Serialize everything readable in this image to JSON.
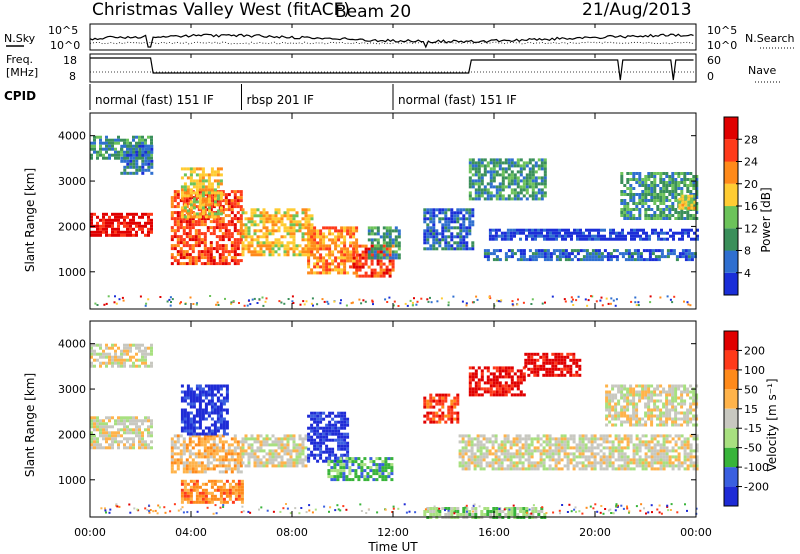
{
  "header": {
    "radar": "Christmas Valley West (fitACF)",
    "beam": "Beam 20",
    "date": "21/Aug/2013"
  },
  "noise_panel": {
    "left_label": "N.Sky",
    "right_label": "N.Search",
    "left_ticks": [
      "10^5",
      "10^0"
    ],
    "right_ticks": [
      "10^5",
      "10^0"
    ]
  },
  "freq_panel": {
    "left_label_1": "Freq.",
    "left_label_2": "[MHz]",
    "right_label": "Nave",
    "left_ticks": [
      "18",
      "8"
    ],
    "right_ticks": [
      "60",
      "0"
    ]
  },
  "cpid": {
    "label": "CPID",
    "segments": [
      {
        "label": "normal (fast) 151 IF",
        "start_hour": 0.0
      },
      {
        "label": "rbsp 201 IF",
        "start_hour": 6.0
      },
      {
        "label": "normal (fast) 151 IF",
        "start_hour": 12.0
      }
    ]
  },
  "x_axis": {
    "label": "Time UT",
    "ticks": [
      "00:00",
      "04:00",
      "08:00",
      "12:00",
      "16:00",
      "20:00",
      "00:00"
    ],
    "range_hours": [
      0,
      24
    ]
  },
  "power_panel": {
    "ylabel": "Slant Range [km]",
    "yticks": [
      "4000",
      "3000",
      "2000",
      "1000"
    ],
    "colorbar_label": "Power [dB]",
    "colorbar_ticks": [
      "28",
      "24",
      "20",
      "16",
      "12",
      "8",
      "4"
    ]
  },
  "velocity_panel": {
    "ylabel": "Slant Range [km]",
    "yticks": [
      "4000",
      "3000",
      "2000",
      "1000"
    ],
    "colorbar_label": "Velocity [m s⁻¹]",
    "colorbar_ticks": [
      "200",
      "100",
      "50",
      "15",
      "-15",
      "-50",
      "-100",
      "-200"
    ]
  },
  "chart_data": {
    "type": "heatmap",
    "title": "Christmas Valley West (fitACF) Beam 20 21/Aug/2013",
    "xlabel": "Time UT",
    "ylabel": "Slant Range [km]",
    "xlim_hours": [
      0,
      24
    ],
    "ylim_km": [
      180,
      4500
    ],
    "power_colorscale": [
      "#1a2ed8",
      "#2f6fd0",
      "#3a8f5a",
      "#6cc35a",
      "#ffcc33",
      "#ff8a1a",
      "#ff3a1a",
      "#e00000"
    ],
    "velocity_colorscale": [
      "#1e2bd6",
      "#3a5fe0",
      "#38b43a",
      "#a8e080",
      "#c8c8c0",
      "#ffb34a",
      "#ff8a1a",
      "#ff3a1a",
      "#e00000"
    ],
    "power_bands": [
      {
        "t0": 0.0,
        "t1": 2.4,
        "r0": 1800,
        "r1": 2300,
        "level": 7
      },
      {
        "t0": 0.0,
        "t1": 2.4,
        "r0": 3500,
        "r1": 4000,
        "level": 2
      },
      {
        "t0": 1.2,
        "t1": 2.4,
        "r0": 3200,
        "r1": 3800,
        "level": 1
      },
      {
        "t0": 3.2,
        "t1": 6.0,
        "r0": 1200,
        "r1": 2800,
        "level": 6
      },
      {
        "t0": 3.6,
        "t1": 5.2,
        "r0": 2200,
        "r1": 3300,
        "level": 4
      },
      {
        "t0": 6.0,
        "t1": 8.8,
        "r0": 1400,
        "r1": 2400,
        "level": 4
      },
      {
        "t0": 8.6,
        "t1": 10.6,
        "r0": 1000,
        "r1": 2000,
        "level": 5
      },
      {
        "t0": 10.4,
        "t1": 12.0,
        "r0": 900,
        "r1": 1600,
        "level": 6
      },
      {
        "t0": 11.0,
        "t1": 12.2,
        "r0": 1300,
        "r1": 2000,
        "level": 2
      },
      {
        "t0": 13.2,
        "t1": 15.2,
        "r0": 1500,
        "r1": 2400,
        "level": 1
      },
      {
        "t0": 15.0,
        "t1": 18.0,
        "r0": 2600,
        "r1": 3500,
        "level": 2
      },
      {
        "t0": 15.6,
        "t1": 24.0,
        "r0": 1250,
        "r1": 1500,
        "level": 1
      },
      {
        "t0": 15.8,
        "t1": 24.0,
        "r0": 1700,
        "r1": 1950,
        "level": 0
      },
      {
        "t0": 21.0,
        "t1": 24.0,
        "r0": 2200,
        "r1": 3200,
        "level": 2
      },
      {
        "t0": 23.3,
        "t1": 24.0,
        "r0": 2400,
        "r1": 2700,
        "level": 4
      }
    ],
    "velocity_bands": [
      {
        "t0": 0.0,
        "t1": 2.4,
        "r0": 1700,
        "r1": 2400,
        "level": 4
      },
      {
        "t0": 0.0,
        "t1": 2.4,
        "r0": 3500,
        "r1": 4000,
        "level": 4
      },
      {
        "t0": 3.2,
        "t1": 6.0,
        "r0": 1200,
        "r1": 2000,
        "level": 5
      },
      {
        "t0": 3.6,
        "t1": 5.4,
        "r0": 2000,
        "r1": 3100,
        "level": 0
      },
      {
        "t0": 6.0,
        "t1": 8.6,
        "r0": 1300,
        "r1": 2000,
        "level": 4
      },
      {
        "t0": 8.6,
        "t1": 10.2,
        "r0": 1400,
        "r1": 2500,
        "level": 0
      },
      {
        "t0": 9.4,
        "t1": 12.0,
        "r0": 1000,
        "r1": 1500,
        "level": 2
      },
      {
        "t0": 3.6,
        "t1": 6.0,
        "r0": 500,
        "r1": 1000,
        "level": 6
      },
      {
        "t0": 13.2,
        "t1": 14.6,
        "r0": 2300,
        "r1": 2900,
        "level": 7
      },
      {
        "t0": 15.0,
        "t1": 17.2,
        "r0": 2900,
        "r1": 3500,
        "level": 8
      },
      {
        "t0": 17.2,
        "t1": 19.4,
        "r0": 3300,
        "r1": 3800,
        "level": 8
      },
      {
        "t0": 14.6,
        "t1": 24.0,
        "r0": 1250,
        "r1": 2000,
        "level": 4
      },
      {
        "t0": 20.4,
        "t1": 24.0,
        "r0": 2200,
        "r1": 3100,
        "level": 4
      },
      {
        "t0": 13.2,
        "t1": 18.0,
        "r0": 180,
        "r1": 400,
        "level": 3
      }
    ]
  }
}
